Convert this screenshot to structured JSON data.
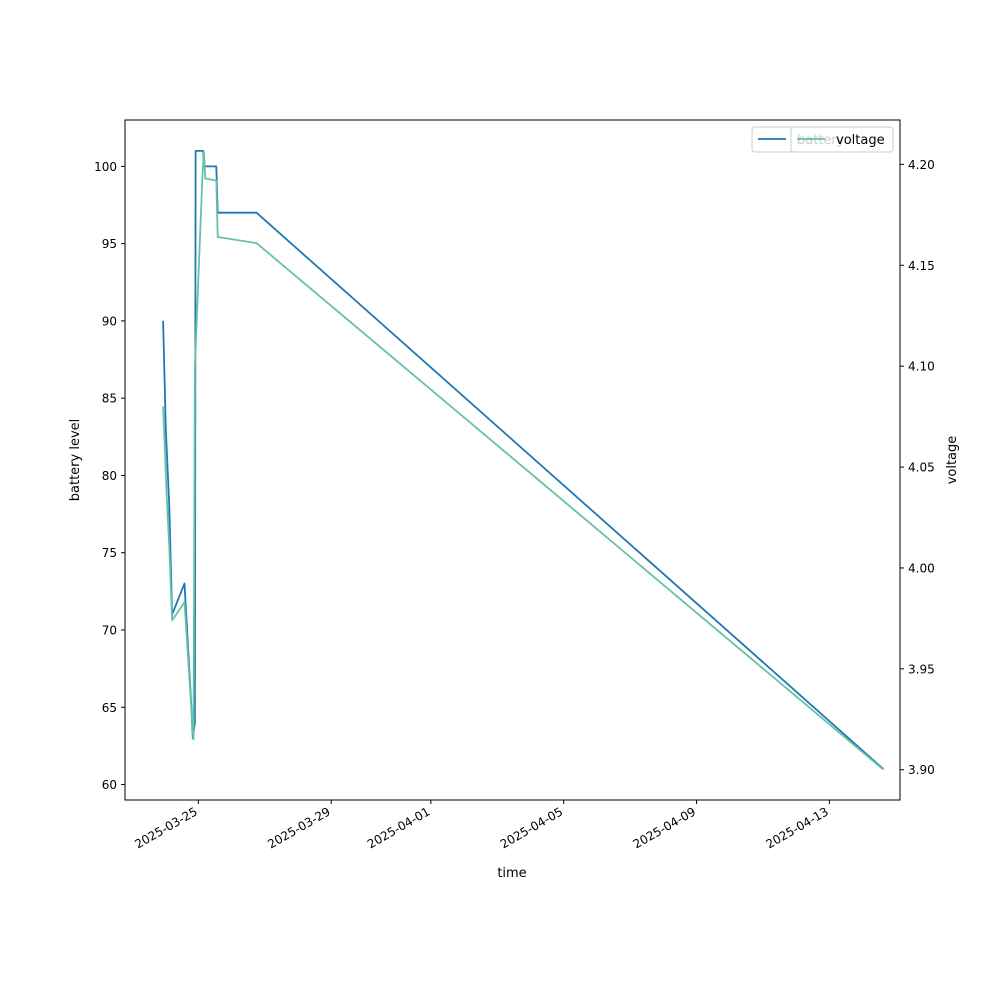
{
  "chart_data": {
    "type": "line",
    "xlabel": "time",
    "ylabel_left": "battery level",
    "ylabel_right": "voltage",
    "x_ticks": [
      "2025-03-25",
      "2025-03-29",
      "2025-04-01",
      "2025-04-05",
      "2025-04-09",
      "2025-04-13"
    ],
    "x_range": [
      "2025-03-22T19:00",
      "2025-04-15T03:00"
    ],
    "y_left_ticks": [
      60,
      65,
      70,
      75,
      80,
      85,
      90,
      95,
      100
    ],
    "y_left_range": [
      59,
      103
    ],
    "y_right_ticks": [
      "3.90",
      "3.95",
      "4.00",
      "4.05",
      "4.10",
      "4.15",
      "4.20"
    ],
    "y_right_range": [
      3.885,
      4.222
    ],
    "grid": false,
    "legend_placement": "top-right",
    "series": [
      {
        "name": "battery",
        "axis": "left",
        "color": "#1f77b4",
        "points": [
          [
            "2025-03-23T22:30",
            90
          ],
          [
            "2025-03-24T00:30",
            83
          ],
          [
            "2025-03-24T03:00",
            78
          ],
          [
            "2025-03-24T05:00",
            71
          ],
          [
            "2025-03-24T14:00",
            73
          ],
          [
            "2025-03-24T19:00",
            65
          ],
          [
            "2025-03-24T20:00",
            63
          ],
          [
            "2025-03-24T21:30",
            64
          ],
          [
            "2025-03-24T22:00",
            101
          ],
          [
            "2025-03-25T03:30",
            101
          ],
          [
            "2025-03-25T04:00",
            100
          ],
          [
            "2025-03-25T13:00",
            100
          ],
          [
            "2025-03-25T14:00",
            97
          ],
          [
            "2025-03-26T18:00",
            97
          ],
          [
            "2025-04-14T15:00",
            61
          ]
        ]
      },
      {
        "name": "voltage",
        "axis": "right",
        "color": "#66c2a5",
        "points": [
          [
            "2025-03-23T22:30",
            4.08
          ],
          [
            "2025-03-24T01:00",
            4.038
          ],
          [
            "2025-03-24T03:00",
            4.01
          ],
          [
            "2025-03-24T05:00",
            3.974
          ],
          [
            "2025-03-24T14:00",
            3.983
          ],
          [
            "2025-03-24T19:00",
            3.93
          ],
          [
            "2025-03-24T20:30",
            3.915
          ],
          [
            "2025-03-24T21:30",
            4.1
          ],
          [
            "2025-03-25T03:00",
            4.195
          ],
          [
            "2025-03-25T04:00",
            4.206
          ],
          [
            "2025-03-25T05:00",
            4.193
          ],
          [
            "2025-03-25T13:00",
            4.192
          ],
          [
            "2025-03-25T14:00",
            4.164
          ],
          [
            "2025-03-26T18:00",
            4.161
          ],
          [
            "2025-04-14T15:00",
            3.9
          ]
        ]
      }
    ],
    "legend_entries": [
      "battery",
      "voltage"
    ]
  }
}
